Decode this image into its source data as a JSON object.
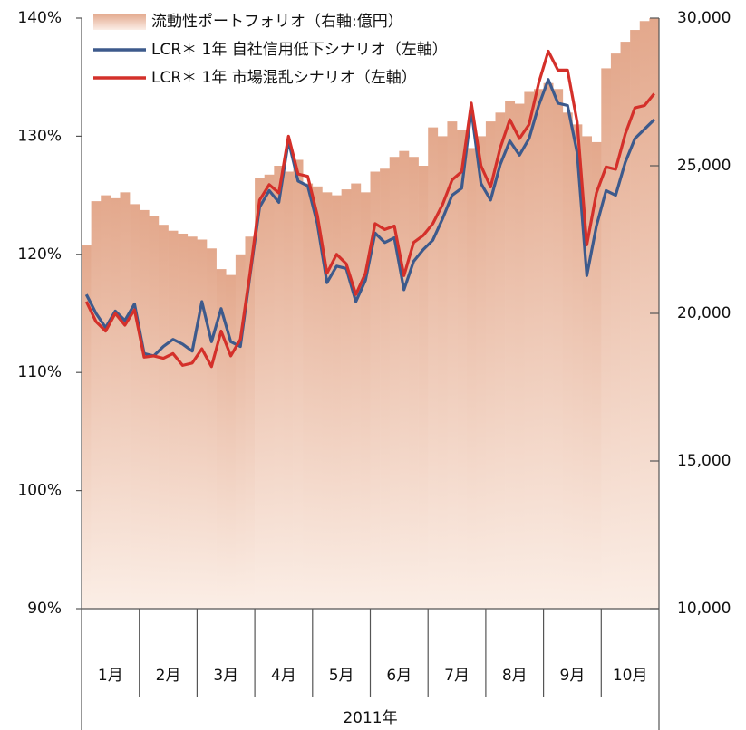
{
  "chart_data": {
    "type": "bar-line",
    "categories": [
      "1月",
      null,
      null,
      null,
      null,
      null,
      "2月",
      null,
      null,
      null,
      null,
      null,
      "3月",
      null,
      null,
      null,
      null,
      null,
      "4月",
      null,
      null,
      null,
      null,
      null,
      "5月",
      null,
      null,
      null,
      null,
      null,
      "6月",
      null,
      null,
      null,
      null,
      null,
      "7月",
      null,
      null,
      null,
      null,
      null,
      "8月",
      null,
      null,
      null,
      null,
      null,
      "9月",
      null,
      null,
      null,
      null,
      null,
      "10月",
      null,
      null,
      null,
      null,
      null
    ],
    "xlabel": "2011年",
    "series": [
      {
        "name": "流動性ポートフォリオ（右軸:億円）",
        "type": "bar",
        "axis": "y2",
        "color": "#e3a88c",
        "values": [
          22300,
          23800,
          24000,
          23900,
          24100,
          23700,
          23500,
          23300,
          23000,
          22800,
          22700,
          22600,
          22500,
          22200,
          21500,
          21300,
          22000,
          22600,
          24600,
          24700,
          25000,
          24800,
          25200,
          24400,
          24300,
          24100,
          24000,
          24200,
          24400,
          24100,
          24800,
          24900,
          25300,
          25500,
          25300,
          25000,
          26300,
          26000,
          26500,
          26200,
          25600,
          26000,
          26500,
          26800,
          27200,
          27100,
          27500,
          27600,
          27800,
          27600,
          26800,
          26400,
          26000,
          25800,
          28300,
          28800,
          29200,
          29600,
          29900,
          30000
        ]
      },
      {
        "name": "LCR＊ 1年 自社信用低下シナリオ（左軸）",
        "type": "line",
        "color": "#3d5a8c",
        "values": [
          116.6,
          115,
          113.8,
          115.2,
          114.4,
          115.8,
          111.6,
          111.4,
          112.2,
          112.8,
          112.4,
          111.8,
          116,
          112.6,
          115.4,
          112.6,
          112.2,
          118.2,
          124,
          125.4,
          124.4,
          129.6,
          126.2,
          125.8,
          122.6,
          117.6,
          119,
          118.8,
          116,
          117.8,
          121.8,
          121,
          121.4,
          117,
          119.4,
          120.4,
          121.2,
          123,
          125,
          125.6,
          132.2,
          126,
          124.6,
          127.6,
          129.6,
          128.4,
          129.8,
          132.6,
          134.8,
          132.8,
          132.6,
          128.6,
          118.2,
          122.4,
          125.4,
          125,
          127.8,
          129.8,
          130.6,
          131.4
        ]
      },
      {
        "name": "LCR＊ 1年 市場混乱シナリオ（左軸）",
        "type": "line",
        "color": "#d4302a",
        "values": [
          116,
          114.3,
          113.5,
          115,
          114,
          115.3,
          111.3,
          111.4,
          111.2,
          111.6,
          110.6,
          110.8,
          112,
          110.5,
          113.5,
          111.4,
          112.8,
          118.4,
          124.6,
          125.9,
          125.2,
          130,
          126.8,
          126.6,
          123.3,
          118.4,
          120,
          119.2,
          116.6,
          118.4,
          122.6,
          122.1,
          122.4,
          118.2,
          121,
          121.6,
          122.6,
          124.2,
          126.3,
          127,
          132.8,
          127.5,
          125.7,
          129,
          131.4,
          129.8,
          131,
          134.5,
          137.2,
          135.6,
          135.6,
          131.2,
          120.8,
          125.2,
          127.4,
          127.2,
          130.2,
          132.4,
          132.6,
          133.6
        ]
      }
    ],
    "ylim": [
      90,
      140
    ],
    "yticks": [
      {
        "value": 90,
        "label": "90%"
      },
      {
        "value": 100,
        "label": "100%"
      },
      {
        "value": 110,
        "label": "110%"
      },
      {
        "value": 120,
        "label": "120%"
      },
      {
        "value": 130,
        "label": "130%"
      },
      {
        "value": 140,
        "label": "140%"
      }
    ],
    "y2lim": [
      10000,
      30000
    ],
    "y2ticks": [
      {
        "value": 10000,
        "label": "10,000"
      },
      {
        "value": 15000,
        "label": "15,000"
      },
      {
        "value": 20000,
        "label": "20,000"
      },
      {
        "value": 25000,
        "label": "25,000"
      },
      {
        "value": 30000,
        "label": "30,000"
      }
    ],
    "legend": "upper left"
  }
}
